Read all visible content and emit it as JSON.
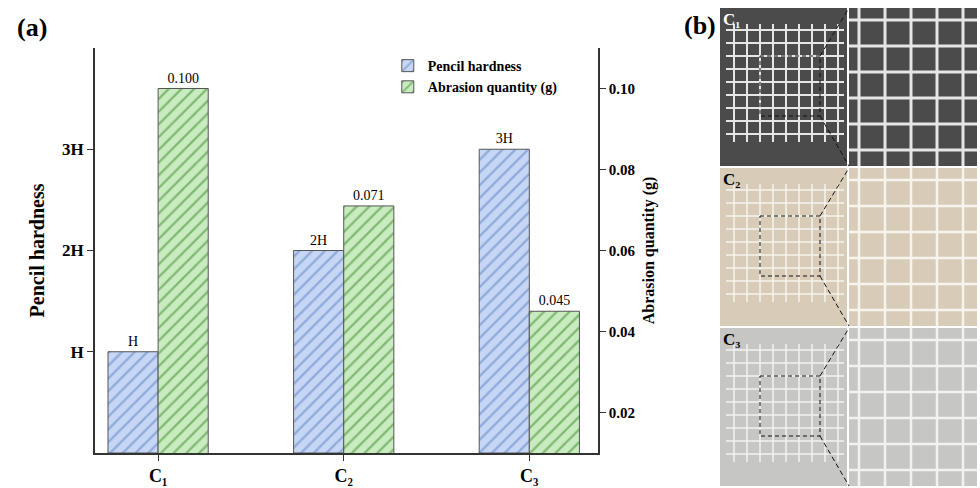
{
  "panel_labels": [
    "(a)",
    "(b)"
  ],
  "chart_data": {
    "type": "bar",
    "categories": [
      "C₁",
      "C₂",
      "C₃"
    ],
    "series": [
      {
        "name": "Pencil hardness",
        "color": "#c6d7f5",
        "values": [
          1,
          2,
          3
        ],
        "value_labels": [
          "H",
          "2H",
          "3H"
        ]
      },
      {
        "name": "Abrasion quantity (g)",
        "color": "#c9ebc0",
        "values": [
          0.1,
          0.071,
          0.045
        ],
        "value_labels": [
          "0.100",
          "0.071",
          "0.045"
        ],
        "axis": "y2"
      }
    ],
    "ylabel": "Pencil hardness",
    "y2label": "Abrasion quantity (g)",
    "ylim": [
      0,
      4
    ],
    "yticks": [
      {
        "value": 1,
        "label": "H"
      },
      {
        "value": 2,
        "label": "2H"
      },
      {
        "value": 3,
        "label": "3H"
      }
    ],
    "y2lim": [
      0.01,
      0.11
    ],
    "y2ticks": [
      0.02,
      0.04,
      0.06,
      0.08,
      {
        "value": 0.1,
        "label": "0.10"
      }
    ],
    "data_labels": true,
    "legend": "upper right",
    "grid": false
  },
  "cross_cut_photos": {
    "samples": [
      "C₁",
      "C₂",
      "C₃"
    ]
  }
}
